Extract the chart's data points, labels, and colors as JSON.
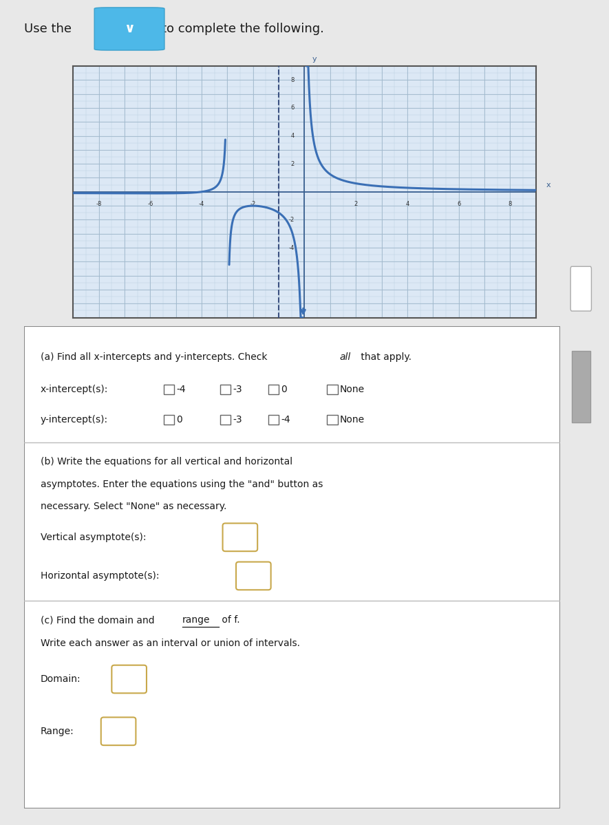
{
  "graph_xlim": [
    -9,
    9
  ],
  "graph_ylim": [
    -9,
    9
  ],
  "x_ticks": [
    -8,
    -6,
    -4,
    -2,
    2,
    4,
    6,
    8
  ],
  "y_ticks": [
    -4,
    -2,
    2,
    4,
    6,
    8
  ],
  "curve_color": "#3a6fb5",
  "asymptote_color": "#3a5080",
  "grid_color": "#b8cfe0",
  "bg_color": "#dce8f5",
  "text_color": "#1a1a1a",
  "answer_box_color": "#c8a84b",
  "header_bg": "#4db8e8",
  "graph_border": "#555555",
  "dashed_line_x": -1,
  "figsize": [
    8.85,
    11.99
  ],
  "dpi": 100,
  "x_intercept_options": [
    "-4",
    "-3",
    "0",
    "None"
  ],
  "y_intercept_options": [
    "0",
    "-3",
    "-4",
    "None"
  ]
}
